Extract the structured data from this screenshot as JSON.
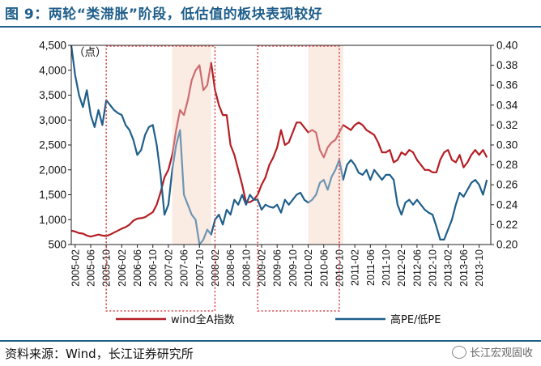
{
  "header": {
    "title": "图 9：两轮“类滞胀”阶段，低估值的板块表现较好"
  },
  "footer": {
    "source": "资料来源：Wind，长江证券研究所",
    "watermark": "长江宏观固收"
  },
  "colors": {
    "wind_a": "#b41e24",
    "pe_ratio": "#1f5f8b",
    "highlight": "#f6d5c6",
    "dotted_box": "#d6474a",
    "rule": "#1f5f8b"
  },
  "chart_data": {
    "type": "line",
    "left_axis_unit": "（点）",
    "left_ylim": [
      500,
      4500
    ],
    "left_ticks": [
      "500",
      "1,000",
      "1,500",
      "2,000",
      "2,500",
      "3,000",
      "3,500",
      "4,000",
      "4,500"
    ],
    "right_ylim": [
      0.2,
      0.4
    ],
    "right_ticks": [
      "0.20",
      "0.22",
      "0.24",
      "0.26",
      "0.28",
      "0.30",
      "0.32",
      "0.34",
      "0.36",
      "0.38",
      "0.40"
    ],
    "x_categories": [
      "2005-02",
      "2005-06",
      "2005-10",
      "2006-02",
      "2006-06",
      "2006-10",
      "2007-02",
      "2007-06",
      "2007-10",
      "2008-02",
      "2008-06",
      "2008-10",
      "2009-02",
      "2009-06",
      "2009-10",
      "2010-02",
      "2010-06",
      "2010-10",
      "2011-02",
      "2011-06",
      "2011-10",
      "2012-02",
      "2012-06",
      "2012-10",
      "2013-02",
      "2013-06",
      "2013-10"
    ],
    "x_range": [
      "2005-01",
      "2014-01"
    ],
    "highlight_periods": [
      {
        "start": "2007-03",
        "end": "2008-01"
      },
      {
        "start": "2010-02",
        "end": "2010-11"
      }
    ],
    "dotted_boxes": [
      {
        "start": "2005-10",
        "end": "2008-02"
      },
      {
        "start": "2009-01",
        "end": "2010-10"
      }
    ],
    "series": [
      {
        "name": "wind全A指数",
        "axis": "left",
        "points": [
          [
            "2005-01",
            780
          ],
          [
            "2005-02",
            760
          ],
          [
            "2005-03",
            730
          ],
          [
            "2005-04",
            720
          ],
          [
            "2005-05",
            680
          ],
          [
            "2005-06",
            660
          ],
          [
            "2005-07",
            680
          ],
          [
            "2005-08",
            700
          ],
          [
            "2005-09",
            680
          ],
          [
            "2005-10",
            670
          ],
          [
            "2005-11",
            700
          ],
          [
            "2005-12",
            740
          ],
          [
            "2006-01",
            780
          ],
          [
            "2006-02",
            820
          ],
          [
            "2006-03",
            850
          ],
          [
            "2006-04",
            900
          ],
          [
            "2006-05",
            980
          ],
          [
            "2006-06",
            1020
          ],
          [
            "2006-07",
            1030
          ],
          [
            "2006-08",
            1050
          ],
          [
            "2006-09",
            1100
          ],
          [
            "2006-10",
            1150
          ],
          [
            "2006-11",
            1300
          ],
          [
            "2006-12",
            1550
          ],
          [
            "2007-01",
            1850
          ],
          [
            "2007-02",
            2000
          ],
          [
            "2007-03",
            2300
          ],
          [
            "2007-04",
            2800
          ],
          [
            "2007-05",
            3200
          ],
          [
            "2007-06",
            3100
          ],
          [
            "2007-07",
            3400
          ],
          [
            "2007-08",
            3800
          ],
          [
            "2007-09",
            4000
          ],
          [
            "2007-10",
            4100
          ],
          [
            "2007-11",
            3600
          ],
          [
            "2007-12",
            3700
          ],
          [
            "2008-01",
            4150
          ],
          [
            "2008-02",
            3600
          ],
          [
            "2008-03",
            3300
          ],
          [
            "2008-04",
            3100
          ],
          [
            "2008-05",
            3100
          ],
          [
            "2008-06",
            2500
          ],
          [
            "2008-07",
            2300
          ],
          [
            "2008-08",
            2000
          ],
          [
            "2008-09",
            1700
          ],
          [
            "2008-10",
            1350
          ],
          [
            "2008-11",
            1350
          ],
          [
            "2008-12",
            1400
          ],
          [
            "2009-01",
            1500
          ],
          [
            "2009-02",
            1700
          ],
          [
            "2009-03",
            1850
          ],
          [
            "2009-04",
            2100
          ],
          [
            "2009-05",
            2250
          ],
          [
            "2009-06",
            2450
          ],
          [
            "2009-07",
            2800
          ],
          [
            "2009-08",
            2500
          ],
          [
            "2009-09",
            2550
          ],
          [
            "2009-10",
            2750
          ],
          [
            "2009-11",
            2950
          ],
          [
            "2009-12",
            2950
          ],
          [
            "2010-01",
            2850
          ],
          [
            "2010-02",
            2750
          ],
          [
            "2010-03",
            2800
          ],
          [
            "2010-04",
            2750
          ],
          [
            "2010-05",
            2400
          ],
          [
            "2010-06",
            2250
          ],
          [
            "2010-07",
            2450
          ],
          [
            "2010-08",
            2550
          ],
          [
            "2010-09",
            2600
          ],
          [
            "2010-10",
            2750
          ],
          [
            "2010-11",
            2900
          ],
          [
            "2010-12",
            2850
          ],
          [
            "2011-01",
            2800
          ],
          [
            "2011-02",
            2900
          ],
          [
            "2011-03",
            2950
          ],
          [
            "2011-04",
            2900
          ],
          [
            "2011-05",
            2800
          ],
          [
            "2011-06",
            2750
          ],
          [
            "2011-07",
            2700
          ],
          [
            "2011-08",
            2550
          ],
          [
            "2011-09",
            2350
          ],
          [
            "2011-10",
            2350
          ],
          [
            "2011-11",
            2400
          ],
          [
            "2011-12",
            2150
          ],
          [
            "2012-01",
            2200
          ],
          [
            "2012-02",
            2350
          ],
          [
            "2012-03",
            2300
          ],
          [
            "2012-04",
            2400
          ],
          [
            "2012-05",
            2350
          ],
          [
            "2012-06",
            2200
          ],
          [
            "2012-07",
            2100
          ],
          [
            "2012-08",
            2000
          ],
          [
            "2012-09",
            2000
          ],
          [
            "2012-10",
            1950
          ],
          [
            "2012-11",
            1950
          ],
          [
            "2012-12",
            2200
          ],
          [
            "2013-01",
            2350
          ],
          [
            "2013-02",
            2400
          ],
          [
            "2013-03",
            2200
          ],
          [
            "2013-04",
            2150
          ],
          [
            "2013-05",
            2300
          ],
          [
            "2013-06",
            2050
          ],
          [
            "2013-07",
            2150
          ],
          [
            "2013-08",
            2300
          ],
          [
            "2013-09",
            2400
          ],
          [
            "2013-10",
            2300
          ],
          [
            "2013-11",
            2400
          ],
          [
            "2013-12",
            2250
          ]
        ]
      },
      {
        "name": "高PE/低PE",
        "axis": "right",
        "points": [
          [
            "2005-01",
            0.4
          ],
          [
            "2005-02",
            0.37
          ],
          [
            "2005-03",
            0.35
          ],
          [
            "2005-04",
            0.338
          ],
          [
            "2005-05",
            0.355
          ],
          [
            "2005-06",
            0.33
          ],
          [
            "2005-07",
            0.318
          ],
          [
            "2005-08",
            0.335
          ],
          [
            "2005-09",
            0.32
          ],
          [
            "2005-10",
            0.345
          ],
          [
            "2005-11",
            0.34
          ],
          [
            "2005-12",
            0.335
          ],
          [
            "2006-01",
            0.332
          ],
          [
            "2006-02",
            0.33
          ],
          [
            "2006-03",
            0.32
          ],
          [
            "2006-04",
            0.315
          ],
          [
            "2006-05",
            0.305
          ],
          [
            "2006-06",
            0.29
          ],
          [
            "2006-07",
            0.295
          ],
          [
            "2006-08",
            0.31
          ],
          [
            "2006-09",
            0.318
          ],
          [
            "2006-10",
            0.32
          ],
          [
            "2006-11",
            0.3
          ],
          [
            "2006-12",
            0.27
          ],
          [
            "2007-01",
            0.23
          ],
          [
            "2007-02",
            0.24
          ],
          [
            "2007-03",
            0.275
          ],
          [
            "2007-04",
            0.3
          ],
          [
            "2007-05",
            0.315
          ],
          [
            "2007-06",
            0.25
          ],
          [
            "2007-07",
            0.24
          ],
          [
            "2007-08",
            0.23
          ],
          [
            "2007-09",
            0.225
          ],
          [
            "2007-10",
            0.2
          ],
          [
            "2007-11",
            0.205
          ],
          [
            "2007-12",
            0.215
          ],
          [
            "2008-01",
            0.21
          ],
          [
            "2008-02",
            0.225
          ],
          [
            "2008-03",
            0.23
          ],
          [
            "2008-04",
            0.22
          ],
          [
            "2008-05",
            0.235
          ],
          [
            "2008-06",
            0.23
          ],
          [
            "2008-07",
            0.245
          ],
          [
            "2008-08",
            0.24
          ],
          [
            "2008-09",
            0.25
          ],
          [
            "2008-10",
            0.24
          ],
          [
            "2008-11",
            0.25
          ],
          [
            "2008-12",
            0.245
          ],
          [
            "2009-01",
            0.245
          ],
          [
            "2009-02",
            0.235
          ],
          [
            "2009-03",
            0.24
          ],
          [
            "2009-04",
            0.238
          ],
          [
            "2009-05",
            0.237
          ],
          [
            "2009-06",
            0.24
          ],
          [
            "2009-07",
            0.232
          ],
          [
            "2009-08",
            0.245
          ],
          [
            "2009-09",
            0.24
          ],
          [
            "2009-10",
            0.245
          ],
          [
            "2009-11",
            0.25
          ],
          [
            "2009-12",
            0.252
          ],
          [
            "2010-01",
            0.245
          ],
          [
            "2010-02",
            0.242
          ],
          [
            "2010-03",
            0.245
          ],
          [
            "2010-04",
            0.25
          ],
          [
            "2010-05",
            0.262
          ],
          [
            "2010-06",
            0.265
          ],
          [
            "2010-07",
            0.255
          ],
          [
            "2010-08",
            0.268
          ],
          [
            "2010-09",
            0.275
          ],
          [
            "2010-10",
            0.285
          ],
          [
            "2010-11",
            0.265
          ],
          [
            "2010-12",
            0.28
          ],
          [
            "2011-01",
            0.285
          ],
          [
            "2011-02",
            0.28
          ],
          [
            "2011-03",
            0.272
          ],
          [
            "2011-04",
            0.27
          ],
          [
            "2011-05",
            0.275
          ],
          [
            "2011-06",
            0.265
          ],
          [
            "2011-07",
            0.275
          ],
          [
            "2011-08",
            0.27
          ],
          [
            "2011-09",
            0.265
          ],
          [
            "2011-10",
            0.27
          ],
          [
            "2011-11",
            0.27
          ],
          [
            "2011-12",
            0.265
          ],
          [
            "2012-01",
            0.24
          ],
          [
            "2012-02",
            0.23
          ],
          [
            "2012-03",
            0.242
          ],
          [
            "2012-04",
            0.245
          ],
          [
            "2012-05",
            0.24
          ],
          [
            "2012-06",
            0.245
          ],
          [
            "2012-07",
            0.24
          ],
          [
            "2012-08",
            0.235
          ],
          [
            "2012-09",
            0.232
          ],
          [
            "2012-10",
            0.23
          ],
          [
            "2012-11",
            0.218
          ],
          [
            "2012-12",
            0.205
          ],
          [
            "2013-01",
            0.205
          ],
          [
            "2013-02",
            0.215
          ],
          [
            "2013-03",
            0.225
          ],
          [
            "2013-04",
            0.24
          ],
          [
            "2013-05",
            0.252
          ],
          [
            "2013-06",
            0.248
          ],
          [
            "2013-07",
            0.255
          ],
          [
            "2013-08",
            0.262
          ],
          [
            "2013-09",
            0.265
          ],
          [
            "2013-10",
            0.26
          ],
          [
            "2013-11",
            0.25
          ],
          [
            "2013-12",
            0.265
          ]
        ]
      }
    ]
  }
}
